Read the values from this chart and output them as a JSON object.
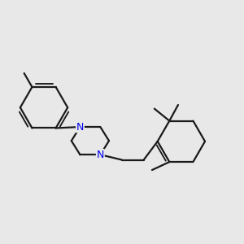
{
  "bg_color": "#e8e8e8",
  "bond_color": "#1a1a1a",
  "N_color": "#0000ee",
  "line_width": 1.6,
  "fig_size": [
    3.0,
    3.0
  ],
  "dpi": 100
}
